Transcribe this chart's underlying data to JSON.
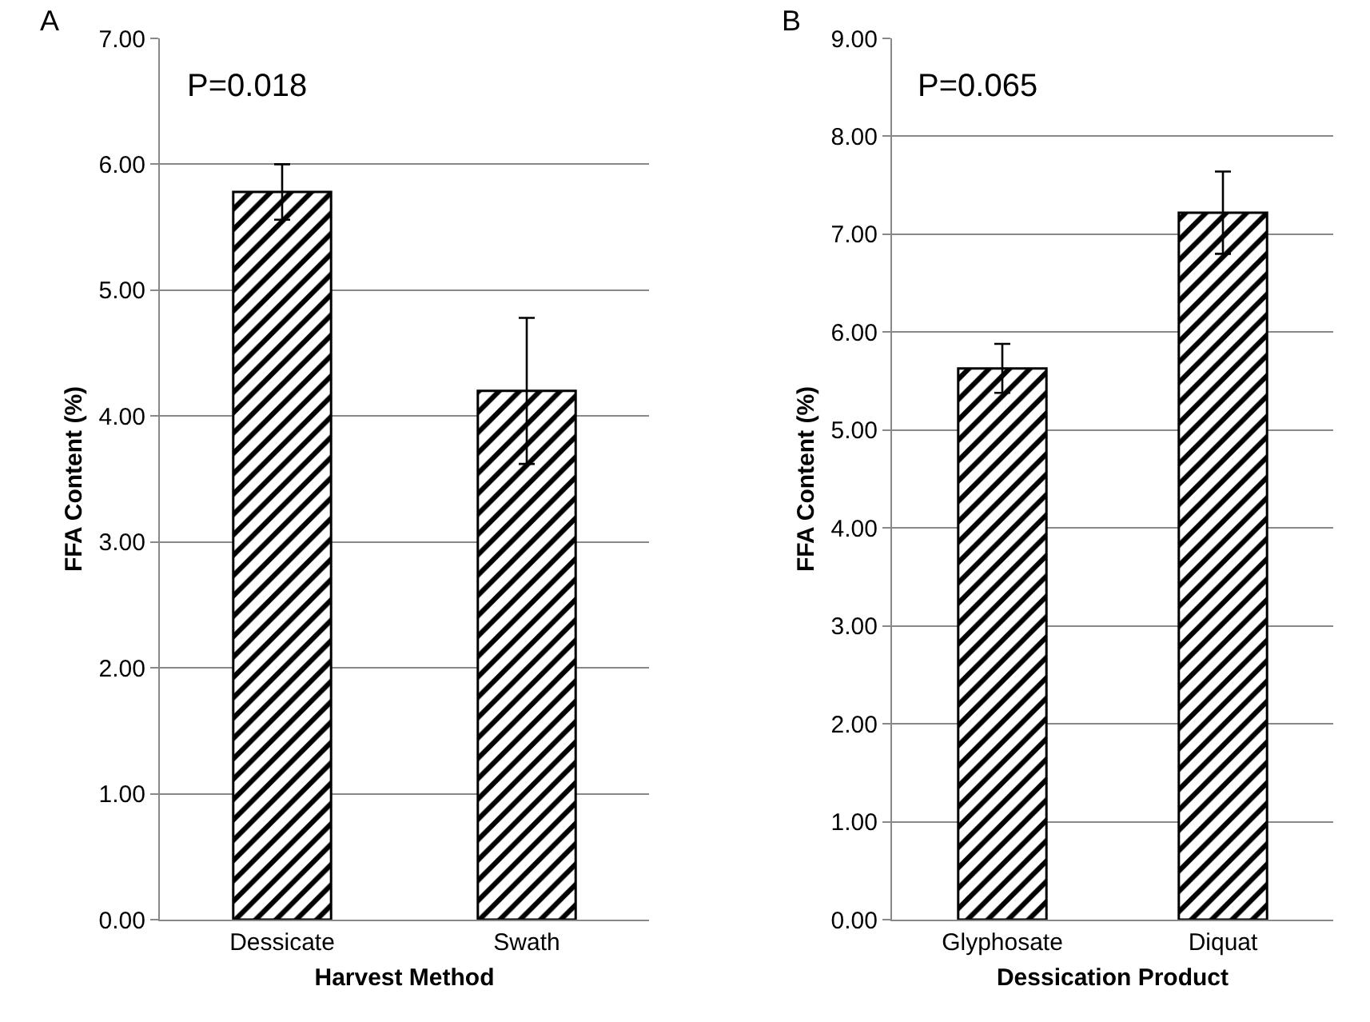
{
  "chart_data": [
    {
      "type": "bar",
      "title": "A",
      "xlabel": "Harvest Method",
      "ylabel": "FFA Content (%)",
      "categories": [
        "Dessicate",
        "Swath"
      ],
      "values": [
        5.78,
        4.2
      ],
      "errors": [
        0.22,
        0.58
      ],
      "color": "#000000",
      "ylim": [
        0,
        7
      ],
      "yticks": [
        {
          "value": 0,
          "label": "0.00"
        },
        {
          "value": 1,
          "label": "1.00"
        },
        {
          "value": 2,
          "label": "2.00"
        },
        {
          "value": 3,
          "label": "3.00"
        },
        {
          "value": 4,
          "label": "4.00"
        },
        {
          "value": 5,
          "label": "5.00"
        },
        {
          "value": 6,
          "label": "6.00"
        },
        {
          "value": 7,
          "label": "7.00"
        }
      ],
      "grid": "y",
      "annotations": [
        "P=0.018"
      ]
    },
    {
      "type": "bar",
      "title": "B",
      "xlabel": "Dessication Product",
      "ylabel": "FFA Content (%)",
      "categories": [
        "Glyphosate",
        "Diquat"
      ],
      "values": [
        5.63,
        7.22
      ],
      "errors": [
        0.25,
        0.42
      ],
      "color": "#000000",
      "ylim": [
        0,
        9
      ],
      "yticks": [
        {
          "value": 0,
          "label": "0.00"
        },
        {
          "value": 1,
          "label": "1.00"
        },
        {
          "value": 2,
          "label": "2.00"
        },
        {
          "value": 3,
          "label": "3.00"
        },
        {
          "value": 4,
          "label": "4.00"
        },
        {
          "value": 5,
          "label": "5.00"
        },
        {
          "value": 6,
          "label": "6.00"
        },
        {
          "value": 7,
          "label": "7.00"
        },
        {
          "value": 8,
          "label": "8.00"
        },
        {
          "value": 9,
          "label": "9.00"
        }
      ],
      "grid": "y",
      "annotations": [
        "P=0.065"
      ]
    }
  ]
}
